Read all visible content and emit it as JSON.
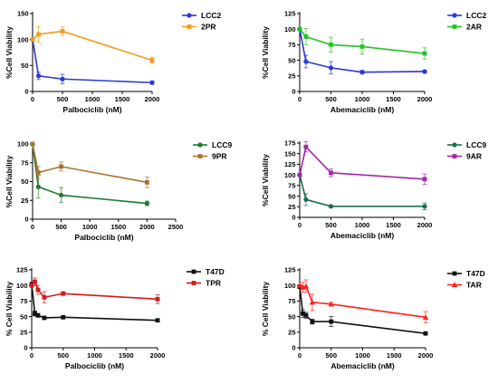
{
  "chart_data": [
    {
      "type": "line",
      "xlabel": "Palbociclib (nM)",
      "ylabel": "%Cell Viability",
      "xlim": [
        0,
        2000
      ],
      "ylim": [
        0,
        150
      ],
      "xticks": [
        0,
        500,
        1000,
        1500,
        2000
      ],
      "yticks": [
        0,
        50,
        100,
        150
      ],
      "legend": "top-right",
      "series": [
        {
          "name": "LCC2",
          "color": "#2a3ad1",
          "marker": "circle",
          "x": [
            0,
            100,
            500,
            2000
          ],
          "y": [
            100,
            30,
            24,
            17
          ],
          "err": [
            0,
            7,
            9,
            3
          ]
        },
        {
          "name": "2PR",
          "color": "#f39a1e",
          "marker": "square",
          "x": [
            0,
            100,
            500,
            2000
          ],
          "y": [
            100,
            110,
            116,
            60
          ],
          "err": [
            0,
            15,
            8,
            6
          ]
        }
      ]
    },
    {
      "type": "line",
      "xlabel": "Abemaciclib (nM)",
      "ylabel": "%Cell Viability",
      "xlim": [
        0,
        2000
      ],
      "ylim": [
        0,
        125
      ],
      "xticks": [
        0,
        500,
        1000,
        1500,
        2000
      ],
      "yticks": [
        0,
        25,
        50,
        75,
        100,
        125
      ],
      "legend": "top-right",
      "series": [
        {
          "name": "LCC2",
          "color": "#2a3ad1",
          "marker": "circle",
          "x": [
            0,
            100,
            500,
            1000,
            2000
          ],
          "y": [
            100,
            48,
            38,
            31,
            32
          ],
          "err": [
            0,
            10,
            10,
            3,
            2
          ]
        },
        {
          "name": "2AR",
          "color": "#21c421",
          "marker": "square",
          "x": [
            0,
            100,
            500,
            1000,
            2000
          ],
          "y": [
            100,
            88,
            75,
            72,
            61
          ],
          "err": [
            0,
            13,
            12,
            12,
            9
          ]
        }
      ]
    },
    {
      "type": "line",
      "xlabel": "Palbociclib (nM)",
      "ylabel": "%Cell Viability",
      "xlim": [
        0,
        2500
      ],
      "ylim": [
        0,
        100
      ],
      "xticks": [
        0,
        500,
        1000,
        1500,
        2000,
        2500
      ],
      "yticks": [
        0,
        25,
        50,
        75,
        100
      ],
      "legend": "top-right",
      "series": [
        {
          "name": "LCC9",
          "color": "#1f7a30",
          "marker": "circle",
          "x": [
            0,
            100,
            500,
            2000
          ],
          "y": [
            100,
            43,
            32,
            21
          ],
          "err": [
            0,
            15,
            10,
            3
          ]
        },
        {
          "name": "9PR",
          "color": "#a8732e",
          "marker": "square",
          "x": [
            0,
            100,
            500,
            2000
          ],
          "y": [
            100,
            62,
            70,
            49
          ],
          "err": [
            0,
            8,
            6,
            7
          ]
        }
      ]
    },
    {
      "type": "line",
      "xlabel": "Abemaciclib (nM)",
      "ylabel": "%Cell Viability",
      "xlim": [
        0,
        2000
      ],
      "ylim": [
        0,
        175
      ],
      "xticks": [
        0,
        500,
        1000,
        1500,
        2000
      ],
      "yticks": [
        0,
        25,
        50,
        75,
        100,
        125,
        150,
        175
      ],
      "legend": "top-right",
      "series": [
        {
          "name": "LCC9",
          "color": "#1a6e52",
          "marker": "circle",
          "x": [
            0,
            100,
            500,
            2000
          ],
          "y": [
            100,
            42,
            26,
            26
          ],
          "err": [
            0,
            14,
            2,
            8
          ]
        },
        {
          "name": "9AR",
          "color": "#a327a8",
          "marker": "square",
          "x": [
            0,
            100,
            500,
            2000
          ],
          "y": [
            100,
            166,
            105,
            90
          ],
          "err": [
            0,
            12,
            9,
            12
          ]
        }
      ]
    },
    {
      "type": "line",
      "xlabel": "Palbociclib (nM)",
      "ylabel": "% Cell Viability",
      "xlim": [
        0,
        2000
      ],
      "ylim": [
        0,
        125
      ],
      "xticks": [
        0,
        500,
        1000,
        1500,
        2000
      ],
      "yticks": [
        0,
        25,
        50,
        75,
        100,
        125
      ],
      "legend": "top-right",
      "series": [
        {
          "name": "T47D",
          "color": "#111111",
          "marker": "square",
          "x": [
            0,
            50,
            100,
            200,
            500,
            2000
          ],
          "y": [
            102,
            55,
            52,
            48,
            49,
            44
          ],
          "err": [
            0,
            4,
            3,
            2,
            2,
            2
          ]
        },
        {
          "name": "TPR",
          "color": "#d11a1a",
          "marker": "square",
          "x": [
            0,
            50,
            100,
            200,
            500,
            2000
          ],
          "y": [
            100,
            106,
            93,
            81,
            87,
            78
          ],
          "err": [
            0,
            6,
            7,
            9,
            3,
            7
          ]
        }
      ]
    },
    {
      "type": "line",
      "xlabel": "Abemaciclib (nM)",
      "ylabel": "% Cell Viability",
      "xlim": [
        0,
        2000
      ],
      "ylim": [
        0,
        125
      ],
      "xticks": [
        0,
        500,
        1000,
        1500,
        2000
      ],
      "yticks": [
        0,
        25,
        50,
        75,
        100,
        125
      ],
      "legend": "top-right",
      "series": [
        {
          "name": "T47D",
          "color": "#111111",
          "marker": "square",
          "x": [
            0,
            50,
            100,
            200,
            500,
            2000
          ],
          "y": [
            98,
            55,
            52,
            42,
            42,
            23
          ],
          "err": [
            0,
            6,
            5,
            4,
            8,
            2
          ]
        },
        {
          "name": "TAR",
          "color": "#ff2020",
          "marker": "triangle",
          "x": [
            0,
            50,
            100,
            200,
            500,
            2000
          ],
          "y": [
            100,
            97,
            99,
            73,
            70,
            49
          ],
          "err": [
            0,
            8,
            10,
            13,
            3,
            9
          ]
        }
      ]
    }
  ]
}
